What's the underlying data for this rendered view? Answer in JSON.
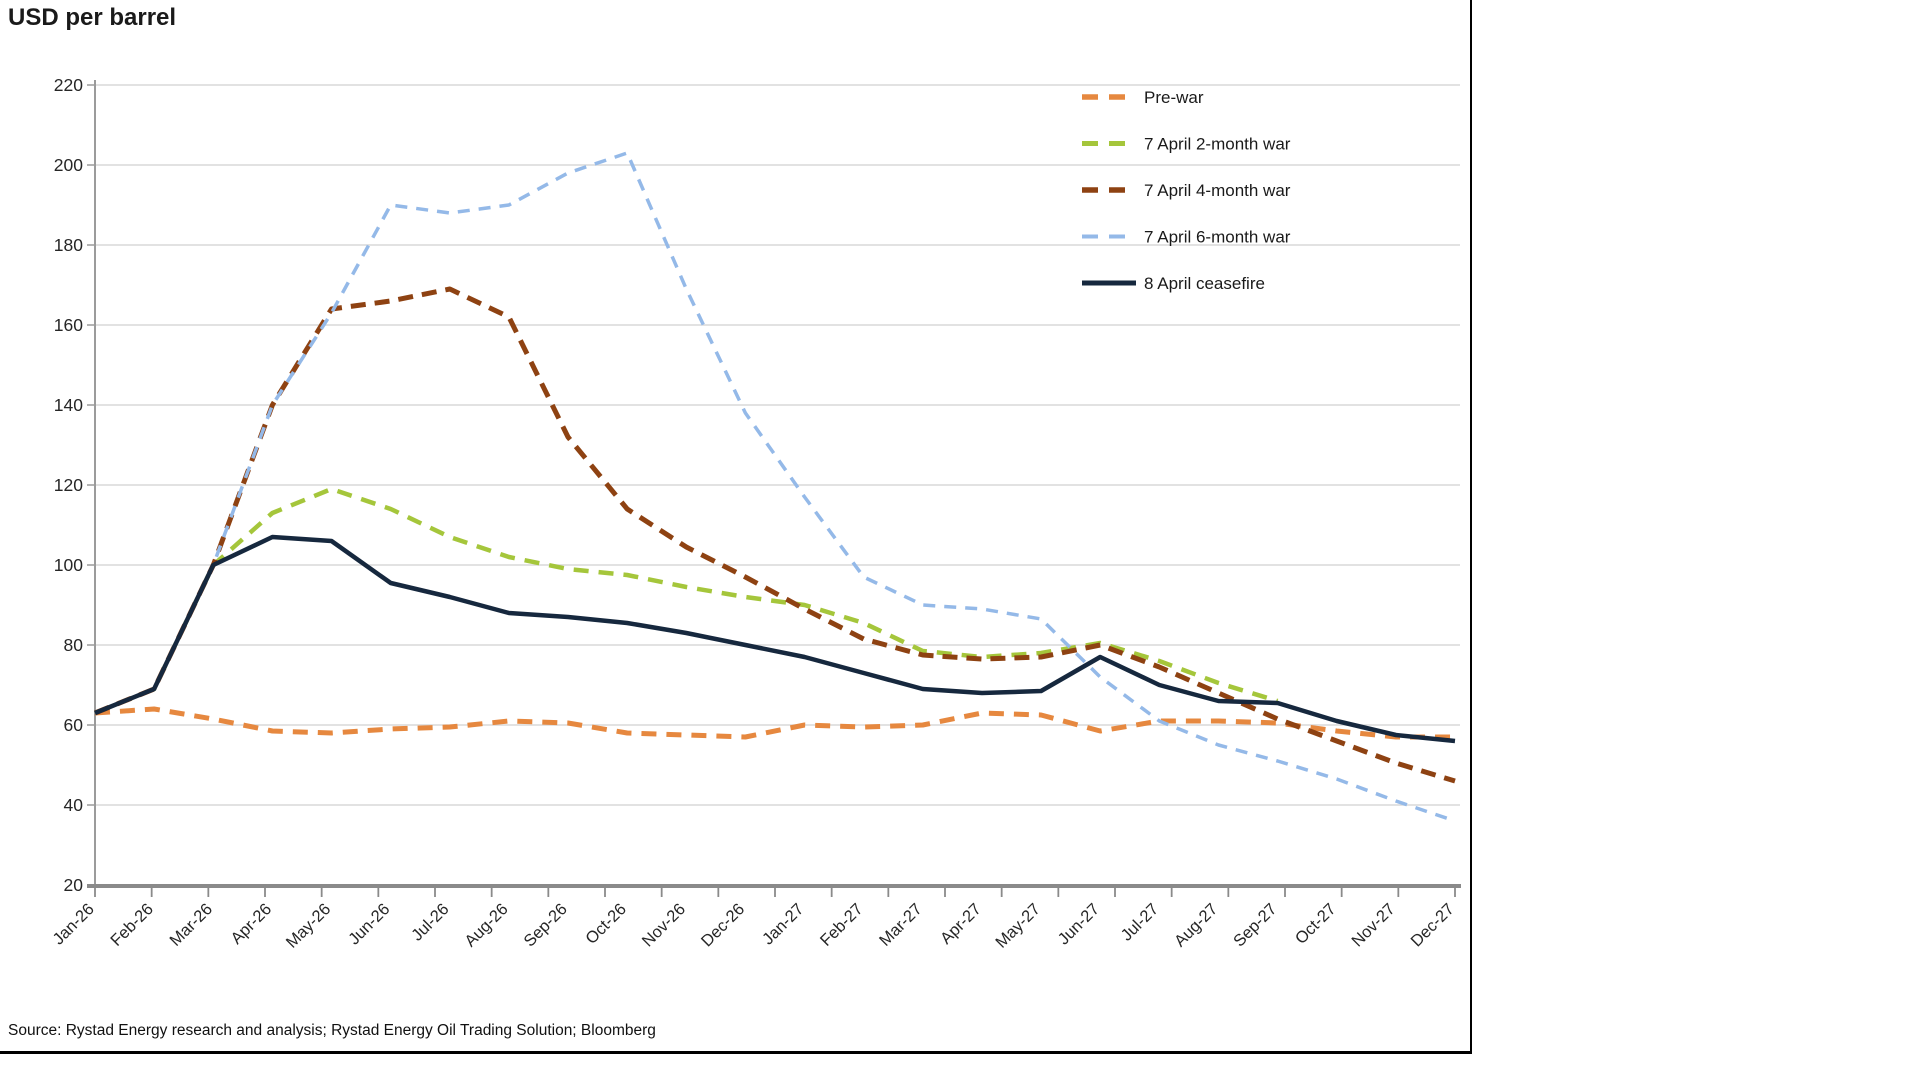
{
  "title": "USD per barrel",
  "source_line": "Source: Rystad Energy research and analysis; Rystad Energy Oil Trading Solution; Bloomberg",
  "colors": {
    "grid": "#d9d9d9",
    "axis": "#9b9b9b",
    "tick_text": "#262626",
    "frame_border": "#000000",
    "pre_war": "#E6883F",
    "war_2_month": "#A5C63B",
    "war_4_month": "#8E4212",
    "war_6_month": "#94B9E8",
    "ceasefire": "#16283E"
  },
  "chart_data": {
    "type": "line",
    "title": "USD per barrel",
    "xlabel": "",
    "ylabel": "USD per barrel",
    "ylim": [
      20,
      220
    ],
    "y_tick_step": 20,
    "grid": "horizontal",
    "legend_position": "top-right-inside",
    "categories": [
      "Jan-26",
      "Feb-26",
      "Mar-26",
      "Apr-26",
      "May-26",
      "Jun-26",
      "Jul-26",
      "Aug-26",
      "Sep-26",
      "Oct-26",
      "Nov-26",
      "Dec-26",
      "Jan-27",
      "Feb-27",
      "Mar-27",
      "Apr-27",
      "May-27",
      "Jun-27",
      "Jul-27",
      "Aug-27",
      "Sep-27",
      "Oct-27",
      "Nov-27",
      "Dec-27"
    ],
    "series": [
      {
        "name": "Pre-war",
        "color": "#E6883F",
        "style": "dashed",
        "dash": "15 10",
        "width": 5,
        "values": [
          63,
          64,
          61.5,
          58.5,
          58,
          59,
          59.5,
          61,
          60.5,
          58,
          57.5,
          57,
          60,
          59.5,
          60,
          63,
          62.5,
          58.5,
          61,
          61,
          60.5,
          58.5,
          57,
          57
        ]
      },
      {
        "name": "7 April 2-month war",
        "color": "#A5C63B",
        "style": "dashed",
        "dash": "15 10",
        "width": 4.5,
        "values": [
          63,
          69,
          100,
          113,
          119,
          114,
          107,
          102,
          99,
          97.5,
          94.5,
          92,
          90,
          85.5,
          78.5,
          77,
          78,
          80.5,
          76,
          70.5,
          66,
          null,
          null,
          null
        ]
      },
      {
        "name": "7 April 4-month war",
        "color": "#8E4212",
        "style": "dashed",
        "dash": "15 9",
        "width": 5,
        "values": [
          63,
          69,
          100,
          140,
          164,
          166,
          169,
          162,
          132,
          114,
          104.5,
          97,
          89,
          81.5,
          77.5,
          76.5,
          77,
          80,
          74.5,
          68,
          61.5,
          56,
          50.5,
          46
        ]
      },
      {
        "name": "7 April 6-month war",
        "color": "#94B9E8",
        "style": "dashed",
        "dash": "12 9",
        "width": 3.5,
        "values": [
          63,
          69,
          100,
          140,
          163,
          190,
          188,
          190,
          198,
          203,
          169,
          138,
          117,
          97,
          90,
          89,
          86.5,
          72,
          61,
          55,
          51,
          46.5,
          41,
          36
        ]
      },
      {
        "name": "8 April ceasefire",
        "color": "#16283E",
        "style": "solid",
        "dash": "",
        "width": 4.5,
        "values": [
          63,
          69,
          100,
          107,
          106,
          95.5,
          92,
          88,
          87,
          85.5,
          83,
          80,
          77,
          73,
          69,
          68,
          68.5,
          77,
          70,
          66,
          65.5,
          61,
          57.5,
          56
        ]
      }
    ]
  }
}
